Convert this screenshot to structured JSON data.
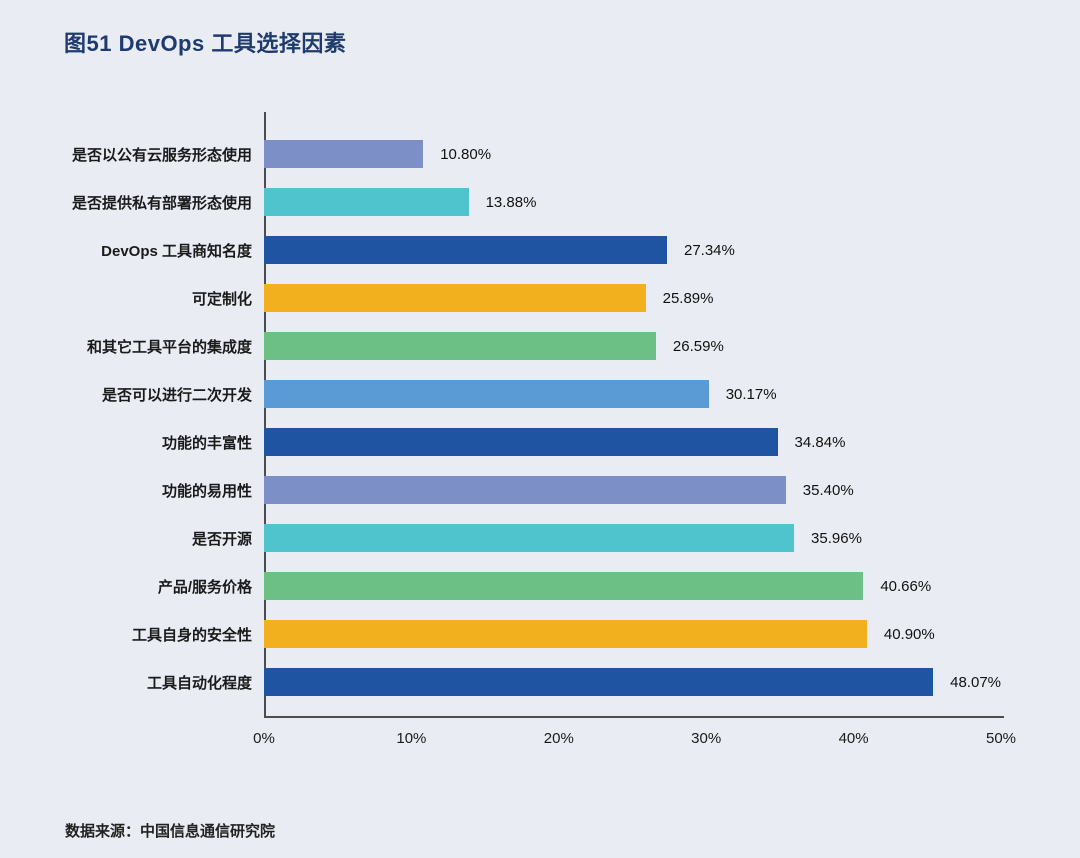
{
  "title": "图51 DevOps 工具选择因素",
  "source": "数据来源：中国信息通信研究院",
  "chart_data": {
    "type": "bar",
    "orientation": "horizontal",
    "title": "图51 DevOps 工具选择因素",
    "categories": [
      "是否以公有云服务形态使用",
      "是否提供私有部署形态使用",
      "DevOps 工具商知名度",
      "可定制化",
      "和其它工具平台的集成度",
      "是否可以进行二次开发",
      "功能的丰富性",
      "功能的易用性",
      "是否开源",
      "产品/服务价格",
      "工具自身的安全性",
      "工具自动化程度"
    ],
    "values": [
      10.8,
      13.88,
      27.34,
      25.89,
      26.59,
      30.17,
      34.84,
      35.4,
      35.96,
      40.66,
      40.9,
      48.07
    ],
    "value_labels": [
      "10.80%",
      "13.88%",
      "27.34%",
      "25.89%",
      "26.59%",
      "30.17%",
      "34.84%",
      "35.40%",
      "35.96%",
      "40.66%",
      "40.90%",
      "48.07%"
    ],
    "bar_colors": [
      "#7d8fc7",
      "#4fc4cc",
      "#1f54a3",
      "#f2b01e",
      "#6cbf85",
      "#5b9bd5",
      "#1f54a3",
      "#7d8fc7",
      "#4fc4cc",
      "#6cbf85",
      "#f2b01e",
      "#1f54a3"
    ],
    "x_ticks": [
      "0%",
      "10%",
      "20%",
      "30%",
      "40%",
      "50%"
    ],
    "xlim": [
      0,
      50
    ],
    "grid": false,
    "legend": false
  },
  "colors": {
    "background": "#e9edf3",
    "title": "#1e3a6e",
    "axis": "#4d4d4d",
    "text": "#1a1a1a"
  }
}
